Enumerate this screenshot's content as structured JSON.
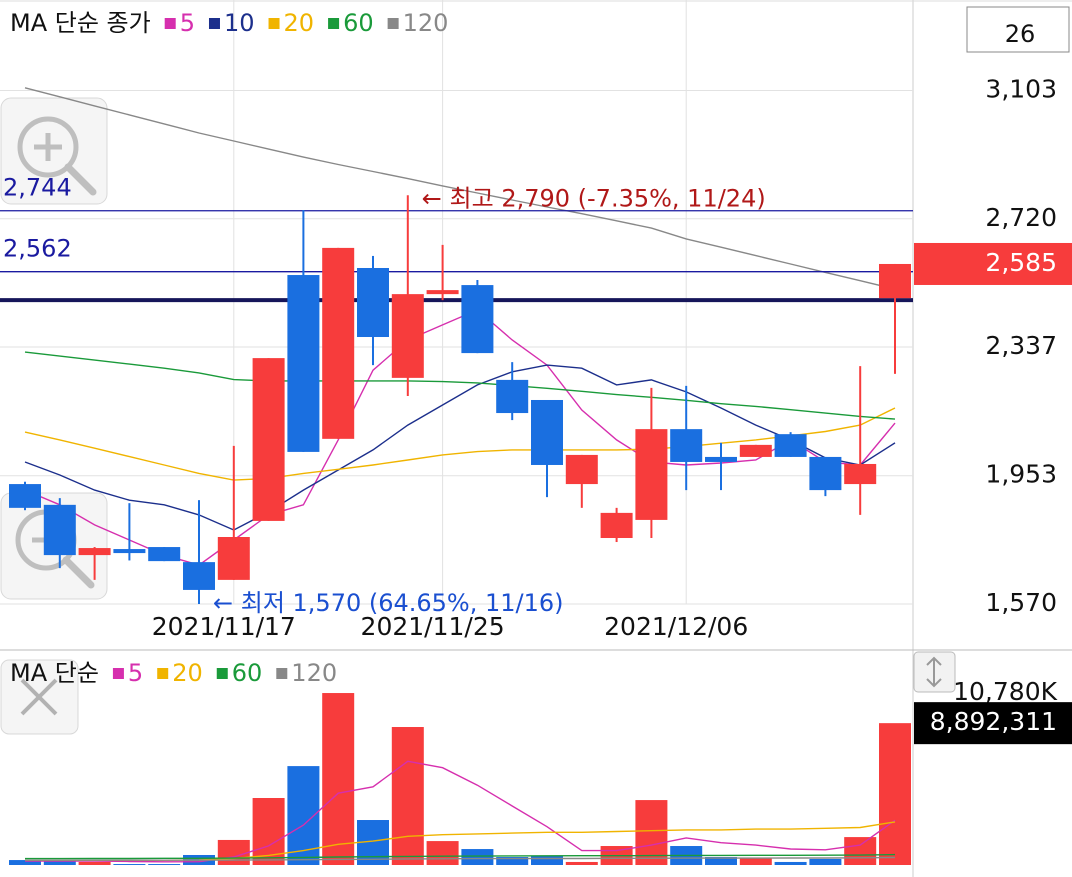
{
  "chart_data": [
    {
      "type": "candlestick",
      "legend_title": "MA 단순 종가",
      "visible_count": 26,
      "categories": [
        null,
        null,
        null,
        null,
        null,
        null,
        "2021/11/17",
        null,
        null,
        null,
        null,
        null,
        "2021/11/25",
        null,
        null,
        null,
        null,
        null,
        null,
        "2021/12/06",
        null,
        null,
        null,
        null,
        null,
        null
      ],
      "open": [
        1928,
        1866,
        1716,
        1734,
        1740,
        1695,
        1642,
        1818,
        2552,
        2063,
        2573,
        2245,
        2495,
        2522,
        2239,
        2179,
        1928,
        1767,
        1821,
        2092,
        2009,
        2009,
        2077,
        2009,
        1928,
        2483
      ],
      "high": [
        1935,
        1886,
        1740,
        1871,
        1740,
        1880,
        2042,
        2304,
        2746,
        2633,
        2609,
        2790,
        2642,
        2537,
        2292,
        2179,
        2015,
        1857,
        2215,
        2221,
        2051,
        2045,
        2083,
        2009,
        2280,
        2585
      ],
      "low": [
        1850,
        1677,
        1642,
        1700,
        1698,
        1570,
        1642,
        1818,
        2024,
        2063,
        2283,
        2191,
        2477,
        2319,
        2119,
        1889,
        1857,
        1755,
        1767,
        1910,
        1910,
        2009,
        2009,
        1892,
        1836,
        2257
      ],
      "close": [
        1857,
        1716,
        1737,
        1722,
        1698,
        1612,
        1770,
        2304,
        2024,
        2633,
        2367,
        2495,
        2507,
        2319,
        2140,
        1985,
        2015,
        1842,
        2092,
        1994,
        1994,
        2045,
        2009,
        1910,
        1988,
        2585
      ],
      "up_color": "#f73c3c",
      "down_color": "#1a6fe0",
      "ylim": [
        1570,
        3373
      ],
      "yticks": [
        {
          "value": 1570,
          "label": "1,570"
        },
        {
          "value": 1953,
          "label": "1,953"
        },
        {
          "value": 2337,
          "label": "2,337"
        },
        {
          "value": 2720,
          "label": "2,720"
        },
        {
          "value": 3103,
          "label": "3,103"
        }
      ],
      "grid": true,
      "current": {
        "value": 2585,
        "label": "2,585"
      },
      "lines": [
        {
          "value": 2744,
          "label": "2,744",
          "color": "#1a1aa0"
        },
        {
          "value": 2562,
          "label": "2,562",
          "color": "#1a1aa0"
        },
        {
          "value": 2477,
          "color": "#16165a"
        }
      ],
      "annotations": {
        "high": "← 최고 2,790 (-7.35%, 11/24)",
        "low": "← 최저 1,570 (64.65%, 11/16)",
        "high_color": "#b01818",
        "low_color": "#1a4fd0"
      },
      "series": [
        {
          "name": "5",
          "color": "#d62fae",
          "values": [
            1910,
            1866,
            1806,
            1761,
            1716,
            1686,
            1761,
            1836,
            1866,
            2060,
            2268,
            2358,
            2403,
            2448,
            2358,
            2283,
            2149,
            2060,
            1994,
            1985,
            1991,
            2000,
            2060,
            1994,
            1985,
            2110
          ]
        },
        {
          "name": "10",
          "color": "#1c2f8c",
          "values": [
            1994,
            1955,
            1910,
            1880,
            1866,
            1836,
            1791,
            1845,
            1910,
            1970,
            2030,
            2104,
            2164,
            2224,
            2263,
            2283,
            2274,
            2224,
            2239,
            2203,
            2155,
            2104,
            2060,
            2006,
            1985,
            2051
          ]
        },
        {
          "name": "20",
          "color": "#f0b400",
          "values": [
            2083,
            2060,
            2035,
            2010,
            1985,
            1960,
            1940,
            1945,
            1960,
            1972,
            1985,
            2000,
            2015,
            2025,
            2030,
            2030,
            2030,
            2030,
            2032,
            2040,
            2050,
            2060,
            2072,
            2085,
            2104,
            2155
          ]
        },
        {
          "name": "60",
          "color": "#1a9a3a",
          "values": [
            2322,
            2310,
            2298,
            2286,
            2274,
            2260,
            2240,
            2236,
            2236,
            2236,
            2236,
            2236,
            2234,
            2230,
            2222,
            2214,
            2205,
            2195,
            2187,
            2178,
            2168,
            2160,
            2150,
            2140,
            2130,
            2122
          ]
        },
        {
          "name": "120",
          "color": "#888888",
          "values": [
            3111,
            3084,
            3057,
            3030,
            3003,
            2976,
            2952,
            2928,
            2904,
            2882,
            2861,
            2840,
            2818,
            2797,
            2776,
            2755,
            2735,
            2714,
            2692,
            2660,
            2635,
            2610,
            2585,
            2560,
            2535,
            2510
          ]
        }
      ]
    },
    {
      "type": "volume",
      "legend_title": "MA 단순",
      "values": [
        310000,
        310000,
        190000,
        60000,
        60000,
        627000,
        1570000,
        4200000,
        6200000,
        10780000,
        2820000,
        8650000,
        1500000,
        1000000,
        500000,
        560000,
        190000,
        1190000,
        4070000,
        1190000,
        500000,
        440000,
        190000,
        380000,
        1750000,
        8892311
      ],
      "ylim": [
        0,
        13290000
      ],
      "yticks": [
        {
          "value": 10780000,
          "label": "10,780K"
        }
      ],
      "current": {
        "value": 8892311,
        "label": "8,892,311"
      },
      "series": [
        {
          "name": "5",
          "color": "#d62fae",
          "values": [
            250000,
            250000,
            250000,
            220000,
            200000,
            210000,
            500000,
            1200000,
            2500000,
            4500000,
            4900000,
            6500000,
            6100000,
            5000000,
            3700000,
            2400000,
            900000,
            900000,
            1250000,
            1700000,
            1400000,
            1250000,
            1000000,
            950000,
            1250000,
            2800000
          ]
        },
        {
          "name": "20",
          "color": "#f0b400",
          "values": [
            300000,
            300000,
            300000,
            300000,
            300000,
            320000,
            400000,
            600000,
            900000,
            1300000,
            1500000,
            1800000,
            1900000,
            1950000,
            2000000,
            2050000,
            2050000,
            2100000,
            2150000,
            2200000,
            2200000,
            2250000,
            2250000,
            2300000,
            2350000,
            2700000
          ]
        },
        {
          "name": "60",
          "color": "#1a9a3a",
          "values": [
            400000,
            400000,
            410000,
            410000,
            420000,
            420000,
            430000,
            450000,
            470000,
            500000,
            520000,
            540000,
            550000,
            560000,
            570000,
            575000,
            580000,
            585000,
            590000,
            600000,
            600000,
            605000,
            610000,
            615000,
            620000,
            650000
          ]
        },
        {
          "name": "120",
          "color": "#888888",
          "values": [
            300000,
            300000,
            300000,
            300000,
            300000,
            300000,
            310000,
            320000,
            330000,
            350000,
            360000,
            380000,
            390000,
            400000,
            400000,
            410000,
            410000,
            420000,
            420000,
            430000,
            430000,
            430000,
            440000,
            440000,
            450000,
            470000
          ]
        }
      ]
    }
  ]
}
